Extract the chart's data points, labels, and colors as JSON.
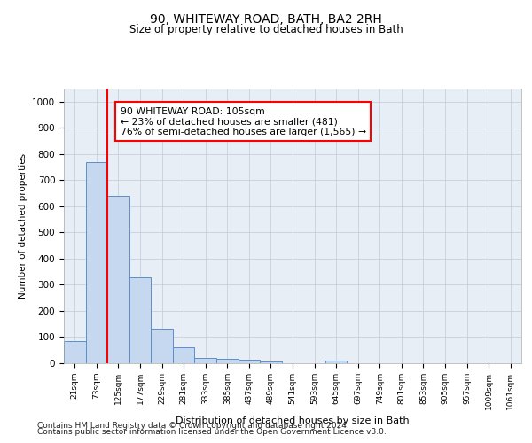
{
  "title": "90, WHITEWAY ROAD, BATH, BA2 2RH",
  "subtitle": "Size of property relative to detached houses in Bath",
  "xlabel": "Distribution of detached houses by size in Bath",
  "ylabel": "Number of detached properties",
  "bar_labels": [
    "21sqm",
    "73sqm",
    "125sqm",
    "177sqm",
    "229sqm",
    "281sqm",
    "333sqm",
    "385sqm",
    "437sqm",
    "489sqm",
    "541sqm",
    "593sqm",
    "645sqm",
    "697sqm",
    "749sqm",
    "801sqm",
    "853sqm",
    "905sqm",
    "957sqm",
    "1009sqm",
    "1061sqm"
  ],
  "bar_values": [
    83,
    770,
    640,
    330,
    133,
    60,
    22,
    18,
    12,
    8,
    0,
    0,
    10,
    0,
    0,
    0,
    0,
    0,
    0,
    0,
    0
  ],
  "bar_color": "#c5d8f0",
  "bar_edge_color": "#5b8fc9",
  "grid_color": "#c8d0dc",
  "vline_color": "red",
  "vline_pos": 1.5,
  "annotation_text": "90 WHITEWAY ROAD: 105sqm\n← 23% of detached houses are smaller (481)\n76% of semi-detached houses are larger (1,565) →",
  "annotation_box_color": "white",
  "annotation_box_edge_color": "red",
  "ylim": [
    0,
    1050
  ],
  "yticks": [
    0,
    100,
    200,
    300,
    400,
    500,
    600,
    700,
    800,
    900,
    1000
  ],
  "bg_color": "#e8eef5",
  "footer1": "Contains HM Land Registry data © Crown copyright and database right 2024.",
  "footer2": "Contains public sector information licensed under the Open Government Licence v3.0."
}
